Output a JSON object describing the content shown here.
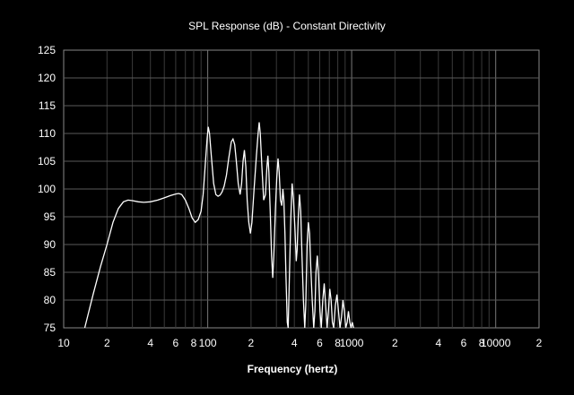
{
  "chart_data": {
    "type": "line",
    "title": "SPL Response (dB) - Constant Directivity",
    "xlabel": "Frequency (hertz)",
    "ylabel": "",
    "xscale": "log",
    "xlim": [
      10,
      20000
    ],
    "ylim": [
      75,
      125
    ],
    "grid": true,
    "x_tick_labels": [
      {
        "x": 10,
        "label": "10"
      },
      {
        "x": 20,
        "label": "2"
      },
      {
        "x": 40,
        "label": "4"
      },
      {
        "x": 60,
        "label": "6"
      },
      {
        "x": 80,
        "label": "8"
      },
      {
        "x": 100,
        "label": "100"
      },
      {
        "x": 200,
        "label": "2"
      },
      {
        "x": 400,
        "label": "4"
      },
      {
        "x": 600,
        "label": "6"
      },
      {
        "x": 800,
        "label": "8"
      },
      {
        "x": 1000,
        "label": "1000"
      },
      {
        "x": 2000,
        "label": "2"
      },
      {
        "x": 4000,
        "label": "4"
      },
      {
        "x": 6000,
        "label": "6"
      },
      {
        "x": 8000,
        "label": "8"
      },
      {
        "x": 10000,
        "label": "10000"
      },
      {
        "x": 20000,
        "label": "2"
      }
    ],
    "y_ticks": [
      75,
      80,
      85,
      90,
      95,
      100,
      105,
      110,
      115,
      120,
      125
    ],
    "series": [
      {
        "color": "#ffffff",
        "points": [
          [
            14,
            75
          ],
          [
            16,
            81
          ],
          [
            18,
            86
          ],
          [
            20,
            90
          ],
          [
            22,
            94
          ],
          [
            24,
            96.5
          ],
          [
            26,
            97.7
          ],
          [
            28,
            98
          ],
          [
            30,
            97.9
          ],
          [
            33,
            97.7
          ],
          [
            36,
            97.6
          ],
          [
            40,
            97.7
          ],
          [
            45,
            98
          ],
          [
            50,
            98.4
          ],
          [
            55,
            98.8
          ],
          [
            60,
            99.1
          ],
          [
            63,
            99.2
          ],
          [
            66,
            99
          ],
          [
            70,
            98
          ],
          [
            74,
            96.5
          ],
          [
            78,
            94.8
          ],
          [
            82,
            94
          ],
          [
            86,
            94.5
          ],
          [
            90,
            96
          ],
          [
            93,
            99
          ],
          [
            96,
            104
          ],
          [
            99,
            109
          ],
          [
            101,
            111.2
          ],
          [
            103,
            110
          ],
          [
            106,
            106
          ],
          [
            110,
            101
          ],
          [
            114,
            99
          ],
          [
            118,
            98.7
          ],
          [
            122,
            98.9
          ],
          [
            126,
            99.5
          ],
          [
            130,
            100.5
          ],
          [
            135,
            102.5
          ],
          [
            140,
            105.5
          ],
          [
            146,
            108.5
          ],
          [
            150,
            109
          ],
          [
            154,
            108
          ],
          [
            158,
            105
          ],
          [
            163,
            101
          ],
          [
            168,
            99
          ],
          [
            172,
            101
          ],
          [
            176,
            105
          ],
          [
            180,
            107
          ],
          [
            184,
            104
          ],
          [
            188,
            98
          ],
          [
            193,
            94
          ],
          [
            198,
            92
          ],
          [
            203,
            94
          ],
          [
            210,
            100
          ],
          [
            218,
            106
          ],
          [
            224,
            110
          ],
          [
            228,
            112
          ],
          [
            232,
            110
          ],
          [
            238,
            104
          ],
          [
            245,
            98
          ],
          [
            252,
            99
          ],
          [
            258,
            104
          ],
          [
            262,
            106
          ],
          [
            266,
            103
          ],
          [
            272,
            96
          ],
          [
            278,
            88
          ],
          [
            283,
            84
          ],
          [
            288,
            88
          ],
          [
            295,
            96
          ],
          [
            302,
            102
          ],
          [
            308,
            105.5
          ],
          [
            314,
            103
          ],
          [
            320,
            98
          ],
          [
            327,
            97
          ],
          [
            333,
            100
          ],
          [
            338,
            98
          ],
          [
            344,
            92
          ],
          [
            350,
            84
          ],
          [
            357,
            76
          ],
          [
            362,
            75
          ],
          [
            370,
            85
          ],
          [
            378,
            95
          ],
          [
            386,
            101
          ],
          [
            395,
            98
          ],
          [
            405,
            92
          ],
          [
            412,
            87
          ],
          [
            418,
            89
          ],
          [
            426,
            95
          ],
          [
            434,
            99
          ],
          [
            443,
            96
          ],
          [
            452,
            88
          ],
          [
            462,
            80
          ],
          [
            472,
            75
          ],
          [
            480,
            79
          ],
          [
            490,
            90
          ],
          [
            500,
            94
          ],
          [
            510,
            92
          ],
          [
            520,
            86
          ],
          [
            532,
            80
          ],
          [
            545,
            75
          ],
          [
            555,
            78
          ],
          [
            565,
            85
          ],
          [
            577,
            88
          ],
          [
            590,
            84
          ],
          [
            603,
            78
          ],
          [
            615,
            75
          ],
          [
            630,
            80
          ],
          [
            645,
            83
          ],
          [
            660,
            79
          ],
          [
            675,
            75
          ],
          [
            690,
            78
          ],
          [
            705,
            82
          ],
          [
            720,
            80
          ],
          [
            735,
            76
          ],
          [
            750,
            75
          ],
          [
            770,
            79
          ],
          [
            790,
            81
          ],
          [
            810,
            78
          ],
          [
            830,
            75
          ],
          [
            850,
            77
          ],
          [
            870,
            80
          ],
          [
            890,
            78
          ],
          [
            910,
            75
          ],
          [
            930,
            76
          ],
          [
            950,
            78
          ],
          [
            970,
            76
          ],
          [
            990,
            75
          ],
          [
            1010,
            76
          ],
          [
            1030,
            75
          ]
        ]
      }
    ]
  }
}
